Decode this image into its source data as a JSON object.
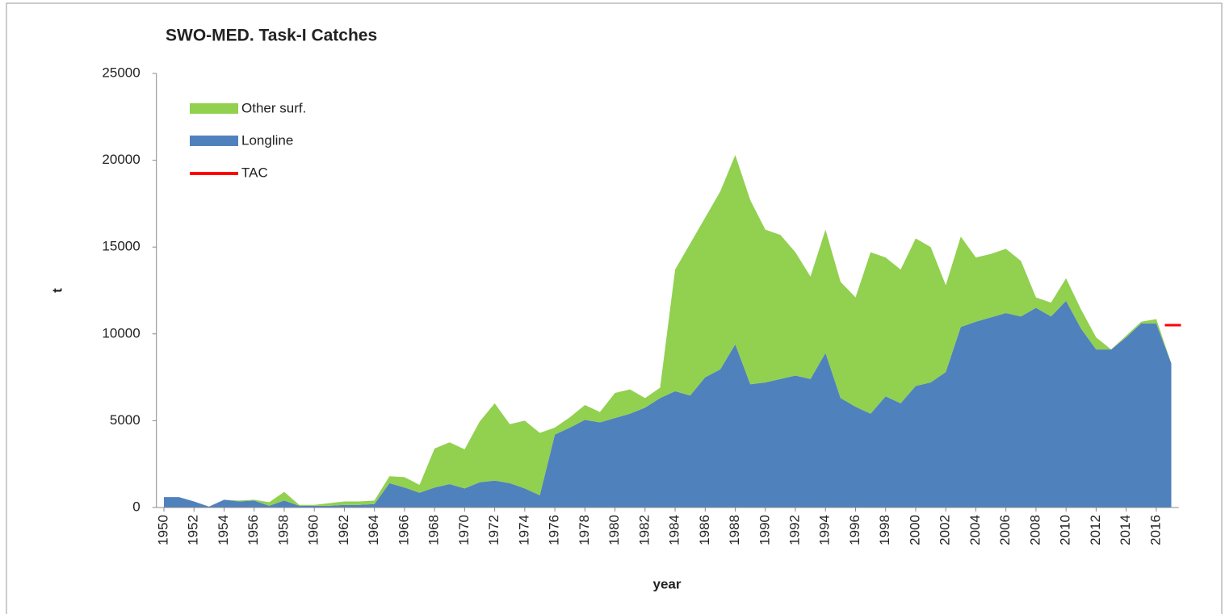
{
  "chart_data": {
    "type": "area",
    "title": "SWO-MED. Task-I Catches",
    "x_label": "year",
    "y_label": "t",
    "x": [
      1950,
      1951,
      1952,
      1953,
      1954,
      1955,
      1956,
      1957,
      1958,
      1959,
      1960,
      1961,
      1962,
      1963,
      1964,
      1965,
      1966,
      1967,
      1968,
      1969,
      1970,
      1971,
      1972,
      1973,
      1974,
      1975,
      1976,
      1977,
      1978,
      1979,
      1980,
      1981,
      1982,
      1983,
      1984,
      1985,
      1986,
      1987,
      1988,
      1989,
      1990,
      1991,
      1992,
      1993,
      1994,
      1995,
      1996,
      1997,
      1998,
      1999,
      2000,
      2001,
      2002,
      2003,
      2004,
      2005,
      2006,
      2007,
      2008,
      2009,
      2010,
      2011,
      2012,
      2013,
      2014,
      2015,
      2016,
      2017
    ],
    "series": [
      {
        "name": "Longline",
        "color": "#4f81bd",
        "stacked": true,
        "values": [
          600,
          600,
          350,
          50,
          450,
          350,
          400,
          100,
          400,
          100,
          100,
          100,
          150,
          150,
          200,
          1400,
          1150,
          850,
          1150,
          1350,
          1100,
          1450,
          1550,
          1400,
          1100,
          700,
          4200,
          4600,
          5050,
          4900,
          5150,
          5400,
          5750,
          6300,
          6700,
          6450,
          7500,
          7950,
          9400,
          7100,
          7200,
          7400,
          7600,
          7400,
          8900,
          6300,
          5800,
          5400,
          6400,
          6000,
          7000,
          7200,
          7800,
          10400,
          10700,
          10950,
          11200,
          11000,
          11500,
          11000,
          11900,
          10300,
          9100,
          9100,
          9800,
          10600,
          10600,
          8300
        ]
      },
      {
        "name": "Other surf.",
        "color": "#92d050",
        "stacked": true,
        "values": [
          0,
          0,
          0,
          0,
          0,
          50,
          50,
          200,
          500,
          50,
          50,
          150,
          200,
          200,
          200,
          400,
          600,
          450,
          2250,
          2400,
          2250,
          3500,
          4450,
          3400,
          3900,
          3600,
          400,
          600,
          850,
          600,
          1450,
          1400,
          550,
          600,
          7000,
          8750,
          9200,
          10250,
          10900,
          10600,
          8800,
          8300,
          7100,
          5900,
          7100,
          6700,
          6300,
          9300,
          8000,
          7700,
          8500,
          7800,
          5000,
          5200,
          3700,
          3650,
          3700,
          3200,
          600,
          800,
          1300,
          1100,
          700,
          0,
          100,
          100,
          250,
          0
        ]
      },
      {
        "name": "TAC",
        "color": "#ff0000",
        "stacked": false,
        "values": [
          null,
          null,
          null,
          null,
          null,
          null,
          null,
          null,
          null,
          null,
          null,
          null,
          null,
          null,
          null,
          null,
          null,
          null,
          null,
          null,
          null,
          null,
          null,
          null,
          null,
          null,
          null,
          null,
          null,
          null,
          null,
          null,
          null,
          null,
          null,
          null,
          null,
          null,
          null,
          null,
          null,
          null,
          null,
          null,
          null,
          null,
          null,
          null,
          null,
          null,
          null,
          null,
          null,
          null,
          null,
          null,
          null,
          null,
          null,
          null,
          null,
          null,
          null,
          null,
          null,
          null,
          null,
          10500
        ]
      }
    ],
    "xlim": [
      1949.5,
      2017.5
    ],
    "xticks": [
      1950,
      1952,
      1954,
      1956,
      1958,
      1960,
      1962,
      1964,
      1966,
      1968,
      1970,
      1972,
      1974,
      1976,
      1978,
      1980,
      1982,
      1984,
      1986,
      1988,
      1990,
      1992,
      1994,
      1996,
      1998,
      2000,
      2002,
      2004,
      2006,
      2008,
      2010,
      2012,
      2014,
      2016
    ],
    "ylim": [
      0,
      25000
    ],
    "yticks": [
      0,
      5000,
      10000,
      15000,
      20000,
      25000
    ],
    "legend": "top-left"
  }
}
